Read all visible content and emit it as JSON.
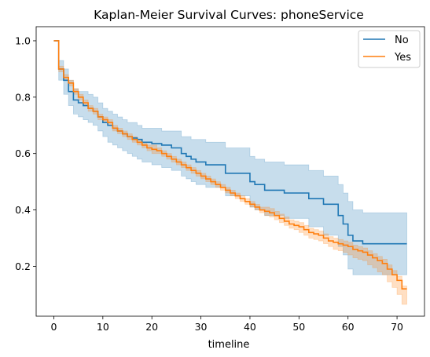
{
  "chart_data": {
    "type": "line",
    "title": "Kaplan-Meier Survival Curves: phoneService",
    "xlabel": "timeline",
    "ylabel": "",
    "xlim": [
      -3.6,
      75.6
    ],
    "ylim": [
      0.023,
      1.05
    ],
    "xticks": [
      0,
      10,
      20,
      30,
      40,
      50,
      60,
      70
    ],
    "yticks": [
      0.2,
      0.4,
      0.6,
      0.8,
      1.0
    ],
    "xtick_labels": [
      "0",
      "10",
      "20",
      "30",
      "40",
      "50",
      "60",
      "70"
    ],
    "ytick_labels": [
      "0.2",
      "0.4",
      "0.6",
      "0.8",
      "1.0"
    ],
    "grid": false,
    "legend_position": "top-right",
    "step_style": "post",
    "series": [
      {
        "name": "No",
        "color": "#1f77b4",
        "x": [
          0,
          1,
          2,
          3,
          4,
          5,
          6,
          7,
          8,
          9,
          10,
          11,
          12,
          13,
          14,
          15,
          16,
          17,
          18,
          20,
          22,
          24,
          26,
          27,
          28,
          29,
          31,
          35,
          40,
          41,
          43,
          47,
          52,
          55,
          58,
          59,
          60,
          61,
          63,
          72
        ],
        "y": [
          1.0,
          0.9,
          0.86,
          0.82,
          0.79,
          0.78,
          0.77,
          0.76,
          0.75,
          0.73,
          0.71,
          0.7,
          0.69,
          0.68,
          0.67,
          0.66,
          0.655,
          0.65,
          0.64,
          0.635,
          0.63,
          0.62,
          0.6,
          0.59,
          0.58,
          0.57,
          0.56,
          0.53,
          0.5,
          0.49,
          0.47,
          0.46,
          0.44,
          0.42,
          0.38,
          0.35,
          0.31,
          0.29,
          0.28,
          0.28
        ],
        "ci_lower": [
          1.0,
          0.86,
          0.81,
          0.77,
          0.74,
          0.73,
          0.72,
          0.71,
          0.7,
          0.68,
          0.66,
          0.64,
          0.63,
          0.62,
          0.61,
          0.6,
          0.59,
          0.58,
          0.57,
          0.56,
          0.55,
          0.54,
          0.52,
          0.51,
          0.5,
          0.49,
          0.48,
          0.45,
          0.41,
          0.4,
          0.38,
          0.37,
          0.34,
          0.31,
          0.27,
          0.24,
          0.19,
          0.17,
          0.17,
          0.17
        ],
        "ci_upper": [
          1.0,
          0.93,
          0.9,
          0.86,
          0.83,
          0.82,
          0.82,
          0.81,
          0.8,
          0.78,
          0.76,
          0.75,
          0.74,
          0.73,
          0.72,
          0.71,
          0.71,
          0.7,
          0.69,
          0.69,
          0.68,
          0.68,
          0.66,
          0.66,
          0.65,
          0.65,
          0.64,
          0.62,
          0.59,
          0.58,
          0.57,
          0.56,
          0.54,
          0.52,
          0.49,
          0.46,
          0.43,
          0.4,
          0.39,
          0.39
        ]
      },
      {
        "name": "Yes",
        "color": "#ff7f0e",
        "x": [
          0,
          1,
          2,
          3,
          4,
          5,
          6,
          7,
          8,
          9,
          10,
          11,
          12,
          13,
          14,
          15,
          16,
          17,
          18,
          19,
          20,
          21,
          22,
          23,
          24,
          25,
          26,
          27,
          28,
          29,
          30,
          31,
          32,
          33,
          34,
          35,
          36,
          37,
          38,
          39,
          40,
          41,
          42,
          43,
          44,
          45,
          46,
          47,
          48,
          49,
          50,
          51,
          52,
          53,
          54,
          55,
          56,
          57,
          58,
          59,
          60,
          61,
          62,
          63,
          64,
          65,
          66,
          67,
          68,
          69,
          70,
          71,
          72
        ],
        "y": [
          1.0,
          0.9,
          0.87,
          0.85,
          0.82,
          0.8,
          0.78,
          0.76,
          0.75,
          0.73,
          0.72,
          0.71,
          0.69,
          0.68,
          0.67,
          0.66,
          0.65,
          0.64,
          0.63,
          0.62,
          0.615,
          0.61,
          0.6,
          0.59,
          0.58,
          0.57,
          0.56,
          0.55,
          0.54,
          0.53,
          0.52,
          0.51,
          0.5,
          0.49,
          0.48,
          0.47,
          0.46,
          0.45,
          0.44,
          0.43,
          0.42,
          0.41,
          0.4,
          0.395,
          0.39,
          0.38,
          0.37,
          0.36,
          0.35,
          0.345,
          0.34,
          0.33,
          0.32,
          0.315,
          0.31,
          0.3,
          0.29,
          0.285,
          0.28,
          0.275,
          0.27,
          0.26,
          0.255,
          0.25,
          0.24,
          0.23,
          0.22,
          0.21,
          0.19,
          0.17,
          0.15,
          0.12,
          0.12
        ],
        "ci_lower": [
          1.0,
          0.89,
          0.86,
          0.84,
          0.81,
          0.79,
          0.77,
          0.75,
          0.74,
          0.72,
          0.71,
          0.7,
          0.68,
          0.67,
          0.66,
          0.65,
          0.64,
          0.63,
          0.62,
          0.61,
          0.6,
          0.6,
          0.59,
          0.58,
          0.57,
          0.56,
          0.55,
          0.54,
          0.53,
          0.52,
          0.51,
          0.5,
          0.49,
          0.48,
          0.47,
          0.46,
          0.45,
          0.44,
          0.43,
          0.42,
          0.41,
          0.4,
          0.39,
          0.38,
          0.375,
          0.365,
          0.355,
          0.345,
          0.335,
          0.33,
          0.32,
          0.31,
          0.3,
          0.295,
          0.29,
          0.28,
          0.27,
          0.26,
          0.255,
          0.25,
          0.24,
          0.23,
          0.225,
          0.22,
          0.205,
          0.195,
          0.18,
          0.17,
          0.145,
          0.125,
          0.1,
          0.065,
          0.065
        ],
        "ci_upper": [
          1.0,
          0.91,
          0.88,
          0.86,
          0.83,
          0.81,
          0.79,
          0.77,
          0.76,
          0.74,
          0.73,
          0.72,
          0.7,
          0.69,
          0.68,
          0.67,
          0.66,
          0.65,
          0.64,
          0.63,
          0.63,
          0.62,
          0.61,
          0.6,
          0.59,
          0.58,
          0.57,
          0.56,
          0.55,
          0.54,
          0.53,
          0.52,
          0.51,
          0.5,
          0.49,
          0.48,
          0.47,
          0.46,
          0.45,
          0.44,
          0.43,
          0.42,
          0.41,
          0.41,
          0.405,
          0.395,
          0.385,
          0.375,
          0.365,
          0.36,
          0.355,
          0.345,
          0.335,
          0.33,
          0.325,
          0.315,
          0.305,
          0.3,
          0.295,
          0.29,
          0.285,
          0.275,
          0.27,
          0.265,
          0.255,
          0.245,
          0.235,
          0.225,
          0.205,
          0.185,
          0.165,
          0.13,
          0.13
        ]
      }
    ]
  }
}
